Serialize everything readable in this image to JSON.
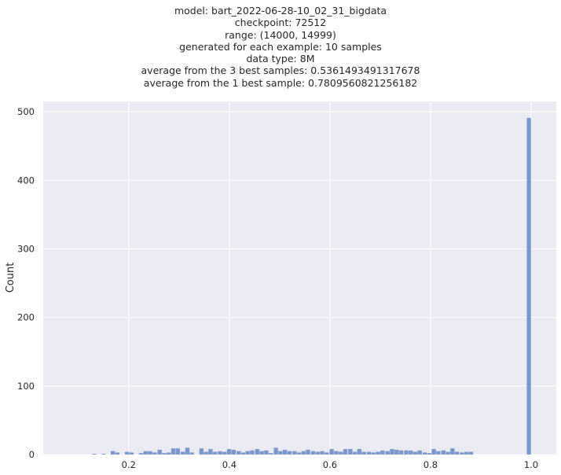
{
  "chart_data": {
    "type": "bar",
    "title_lines": [
      "model: bart_2022-06-28-10_02_31_bigdata",
      "checkpoint: 72512",
      "range: (14000, 14999)",
      "generated for each example: 10 samples",
      "data type: 8M",
      "average from the 3 best samples: 0.5361493491317678",
      "average from the 1 best sample: 0.7809560821256182"
    ],
    "xlabel": "",
    "ylabel": "Count",
    "xlim": [
      0.03,
      1.05
    ],
    "ylim": [
      0,
      515
    ],
    "xticks": [
      "0.2",
      "0.4",
      "0.6",
      "0.8",
      "1.0"
    ],
    "yticks": [
      "0",
      "100",
      "200",
      "300",
      "400",
      "500"
    ],
    "grid": true,
    "bin_width": 0.00925,
    "bar_color": "#7293cb",
    "bins": [
      [
        0.132,
        1
      ],
      [
        0.142,
        0
      ],
      [
        0.151,
        1
      ],
      [
        0.16,
        0
      ],
      [
        0.169,
        5
      ],
      [
        0.178,
        3
      ],
      [
        0.188,
        0
      ],
      [
        0.197,
        4
      ],
      [
        0.206,
        3
      ],
      [
        0.215,
        0
      ],
      [
        0.225,
        2
      ],
      [
        0.234,
        5
      ],
      [
        0.243,
        5
      ],
      [
        0.252,
        3
      ],
      [
        0.262,
        7
      ],
      [
        0.271,
        2
      ],
      [
        0.28,
        3
      ],
      [
        0.289,
        9
      ],
      [
        0.298,
        9
      ],
      [
        0.308,
        4
      ],
      [
        0.317,
        10
      ],
      [
        0.326,
        3
      ],
      [
        0.335,
        0
      ],
      [
        0.345,
        9
      ],
      [
        0.354,
        4
      ],
      [
        0.363,
        8
      ],
      [
        0.372,
        4
      ],
      [
        0.382,
        5
      ],
      [
        0.391,
        4
      ],
      [
        0.4,
        8
      ],
      [
        0.409,
        7
      ],
      [
        0.419,
        5
      ],
      [
        0.428,
        3
      ],
      [
        0.437,
        5
      ],
      [
        0.446,
        6
      ],
      [
        0.456,
        8
      ],
      [
        0.465,
        5
      ],
      [
        0.474,
        6
      ],
      [
        0.483,
        2
      ],
      [
        0.493,
        10
      ],
      [
        0.502,
        5
      ],
      [
        0.511,
        7
      ],
      [
        0.52,
        5
      ],
      [
        0.53,
        5
      ],
      [
        0.539,
        3
      ],
      [
        0.548,
        5
      ],
      [
        0.557,
        7
      ],
      [
        0.567,
        5
      ],
      [
        0.576,
        4
      ],
      [
        0.585,
        5
      ],
      [
        0.594,
        3
      ],
      [
        0.604,
        8
      ],
      [
        0.613,
        5
      ],
      [
        0.622,
        4
      ],
      [
        0.631,
        8
      ],
      [
        0.641,
        8
      ],
      [
        0.65,
        4
      ],
      [
        0.659,
        8
      ],
      [
        0.668,
        4
      ],
      [
        0.678,
        4
      ],
      [
        0.687,
        3
      ],
      [
        0.696,
        4
      ],
      [
        0.705,
        6
      ],
      [
        0.715,
        5
      ],
      [
        0.724,
        8
      ],
      [
        0.733,
        7
      ],
      [
        0.742,
        6
      ],
      [
        0.752,
        6
      ],
      [
        0.761,
        6
      ],
      [
        0.77,
        4
      ],
      [
        0.779,
        6
      ],
      [
        0.789,
        3
      ],
      [
        0.798,
        2
      ],
      [
        0.807,
        8
      ],
      [
        0.816,
        5
      ],
      [
        0.826,
        6
      ],
      [
        0.835,
        4
      ],
      [
        0.844,
        9
      ],
      [
        0.853,
        4
      ],
      [
        0.863,
        3
      ],
      [
        0.872,
        4
      ],
      [
        0.881,
        4
      ],
      [
        0.89,
        0
      ],
      [
        0.899,
        0
      ],
      [
        0.996,
        491
      ]
    ]
  }
}
